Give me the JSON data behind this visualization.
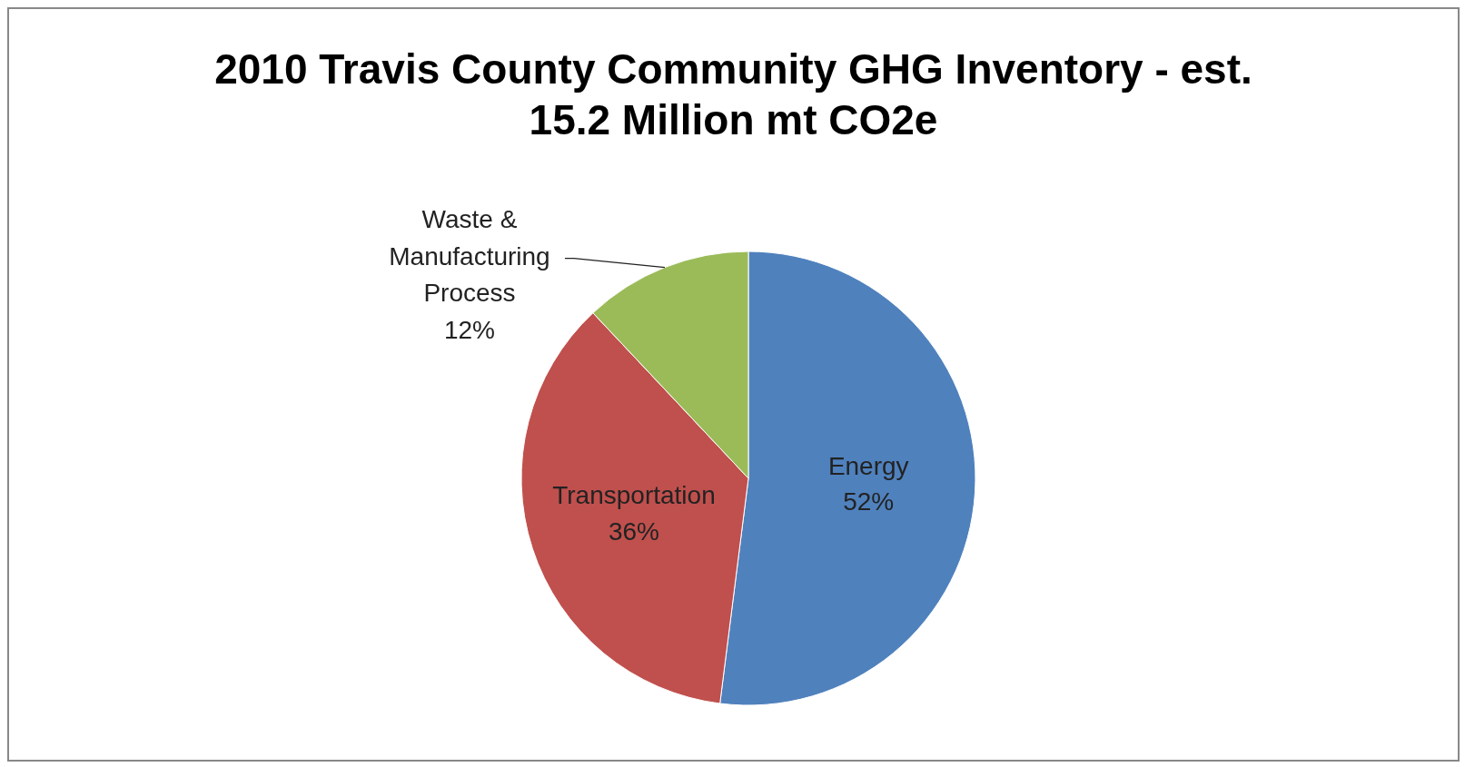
{
  "chart_data": {
    "type": "pie",
    "title": "2010 Travis County Community GHG Inventory - est. 15.2 Million mt CO2e",
    "categories": [
      "Energy",
      "Transportation",
      "Waste & Manufacturing Process"
    ],
    "values": [
      52,
      36,
      12
    ],
    "colors": [
      "#4f81bd",
      "#c0504d",
      "#9bbb59"
    ],
    "value_labels": [
      "52%",
      "36%",
      "12%"
    ],
    "legend": false
  }
}
